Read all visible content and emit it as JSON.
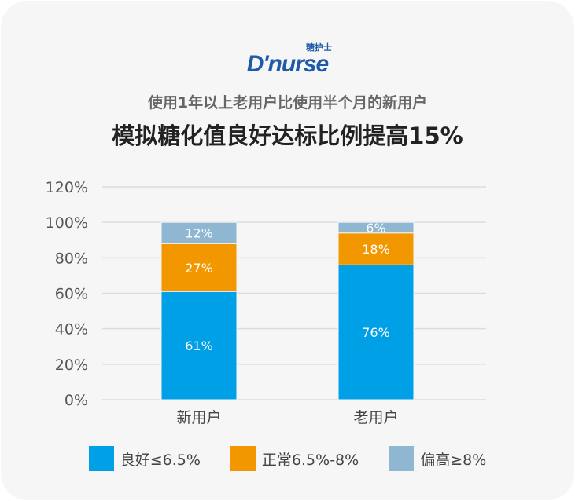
{
  "logo": {
    "text": "D'nurse",
    "cn": "糖护士"
  },
  "subtitle": "使用1年以上老用户比使用半个月的新用户",
  "title": "模拟糖化值良好达标比例提高15%",
  "chart_data": {
    "type": "bar",
    "stacked": true,
    "categories": [
      "新用户",
      "老用户"
    ],
    "series": [
      {
        "name": "良好≤6.5%",
        "color": "#00a0e6",
        "values": [
          61,
          76
        ],
        "labels": [
          "61%",
          "76%"
        ]
      },
      {
        "name": "正常6.5%-8%",
        "color": "#f39700",
        "values": [
          27,
          18
        ],
        "labels": [
          "27%",
          "18%"
        ]
      },
      {
        "name": "偏高≥8%",
        "color": "#8fb7d2",
        "values": [
          12,
          6
        ],
        "labels": [
          "12%",
          "6%"
        ]
      }
    ],
    "ylim": [
      0,
      120
    ],
    "yticks": [
      "0%",
      "20%",
      "40%",
      "60%",
      "80%",
      "100%",
      "120%"
    ],
    "grid": true,
    "legend": "bottom"
  }
}
